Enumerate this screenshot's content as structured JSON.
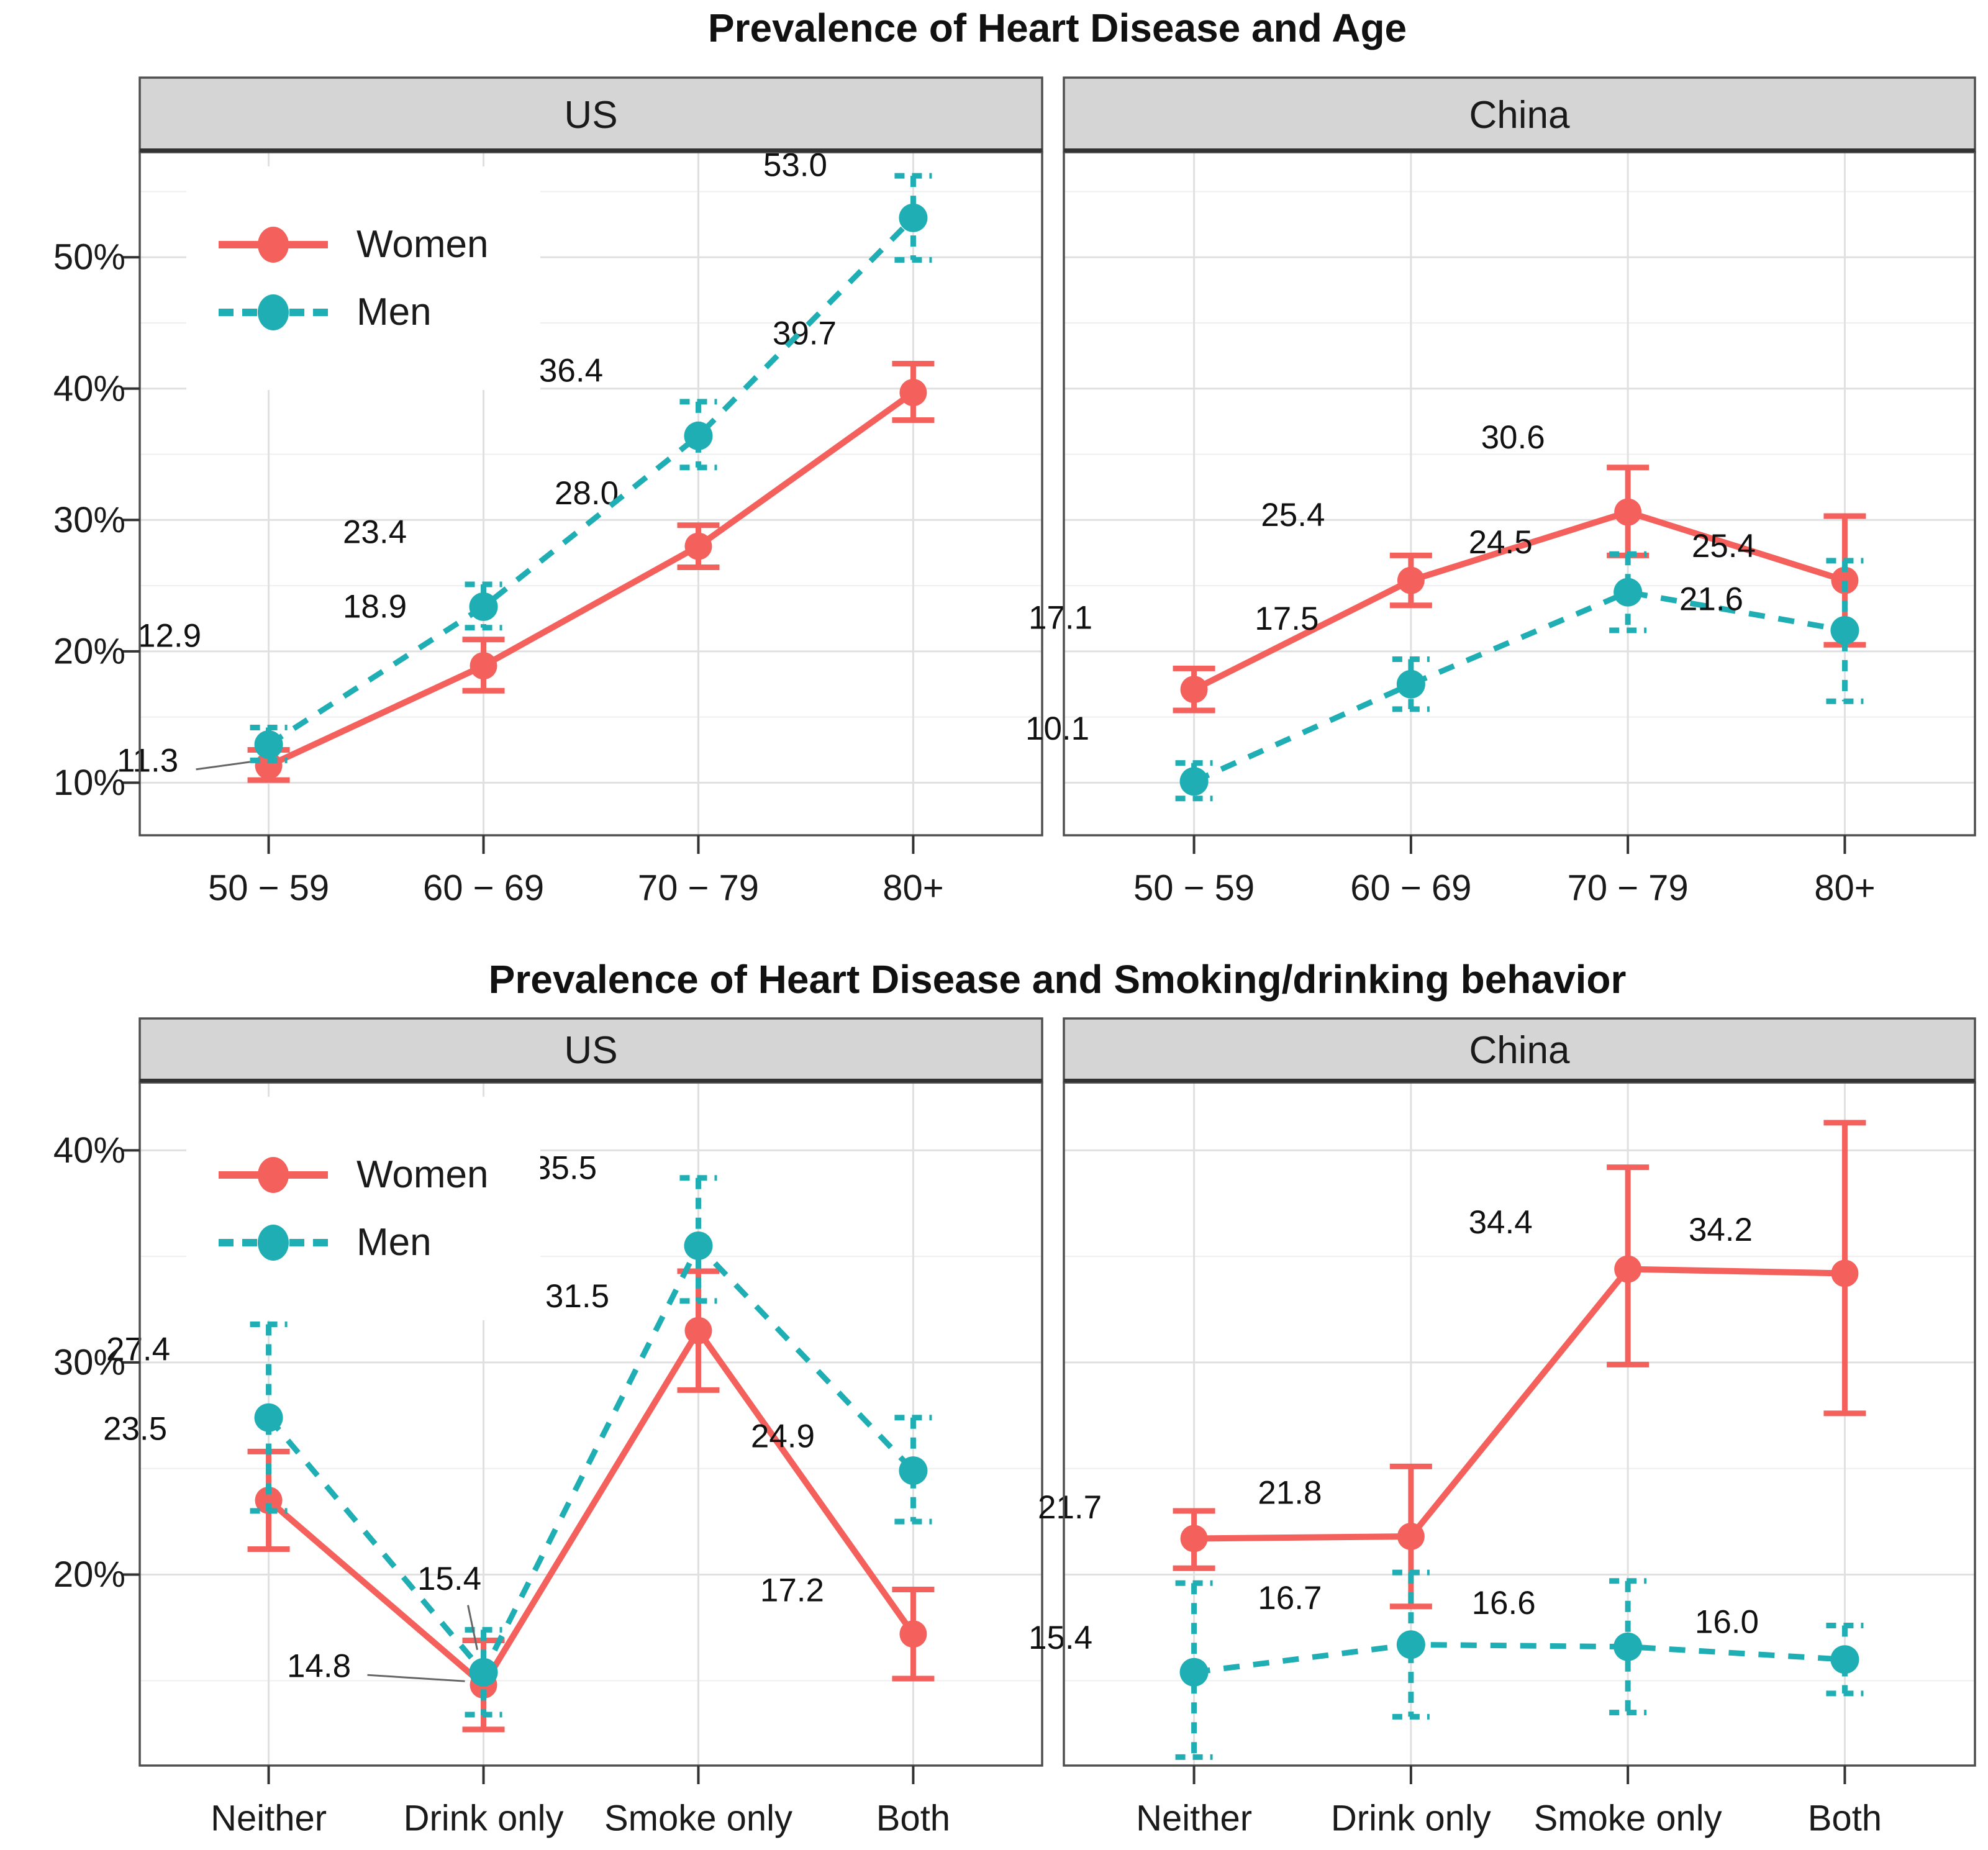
{
  "colors": {
    "women": "#F4605C",
    "men": "#1FAEB3",
    "strip_bg": "#D5D5D5",
    "panel_border": "#4F4F4F",
    "grid_major": "#E0E0E0",
    "grid_minor": "#EFEFEF",
    "axis_text": "#1A1A1A",
    "tick": "#333333",
    "leader": "#666666",
    "background": "#FFFFFF"
  },
  "legend": {
    "women_label": "Women",
    "men_label": "Men"
  },
  "chart_data": [
    {
      "type": "line",
      "title": "Prevalence of Heart Disease and Age",
      "xlabel": "",
      "ylabel": "",
      "x_categories": [
        "50 − 59",
        "60 − 69",
        "70 − 79",
        "80+"
      ],
      "y_domain": [
        6,
        58
      ],
      "y_ticks": [
        {
          "value": 10,
          "label": "10%"
        },
        {
          "value": 20,
          "label": "20%"
        },
        {
          "value": 30,
          "label": "30%"
        },
        {
          "value": 40,
          "label": "40%"
        },
        {
          "value": 50,
          "label": "50%"
        }
      ],
      "y_minor": [
        15,
        25,
        35,
        45,
        55
      ],
      "legend_position": "inside-top-left-US",
      "grid": true,
      "facets": [
        {
          "label": "US",
          "series": [
            {
              "name": "Women",
              "values": [
                11.3,
                18.9,
                28.0,
                39.7
              ],
              "err_low": [
                10.2,
                17.0,
                26.4,
                37.6
              ],
              "err_high": [
                12.5,
                20.9,
                29.6,
                41.9
              ],
              "labels": [
                {
                  "text": "11.3",
                  "dx": -195,
                  "dy": -8,
                  "leader": true
                },
                {
                  "text": "18.9",
                  "dx": -175,
                  "dy": -95
                },
                {
                  "text": "28.0",
                  "dx": -180,
                  "dy": -85
                },
                {
                  "text": "39.7",
                  "dx": -175,
                  "dy": -95
                }
              ]
            },
            {
              "name": "Men",
              "values": [
                12.9,
                23.4,
                36.4,
                53.0
              ],
              "err_low": [
                11.7,
                21.8,
                34.0,
                49.8
              ],
              "err_high": [
                14.2,
                25.1,
                39.0,
                56.2
              ],
              "labels": [
                {
                  "text": "12.9",
                  "dx": -160,
                  "dy": -175
                },
                {
                  "text": "23.4",
                  "dx": -175,
                  "dy": -120
                },
                {
                  "text": "36.4",
                  "dx": -205,
                  "dy": -105
                },
                {
                  "text": "53.0",
                  "dx": -190,
                  "dy": -85
                }
              ]
            }
          ]
        },
        {
          "label": "China",
          "series": [
            {
              "name": "Women",
              "values": [
                17.1,
                25.4,
                30.6,
                25.4
              ],
              "err_low": [
                15.5,
                23.5,
                27.3,
                20.5
              ],
              "err_high": [
                18.7,
                27.3,
                34.0,
                30.3
              ],
              "labels": [
                {
                  "text": "17.1",
                  "dx": -215,
                  "dy": -115
                },
                {
                  "text": "25.4",
                  "dx": -190,
                  "dy": -105
                },
                {
                  "text": "30.6",
                  "dx": -185,
                  "dy": -120
                },
                {
                  "text": "25.4",
                  "dx": -195,
                  "dy": -55
                }
              ]
            },
            {
              "name": "Men",
              "values": [
                10.1,
                17.5,
                24.5,
                21.6
              ],
              "err_low": [
                8.8,
                15.6,
                21.6,
                16.2
              ],
              "err_high": [
                11.5,
                19.4,
                27.4,
                26.9
              ],
              "labels": [
                {
                  "text": "10.1",
                  "dx": -220,
                  "dy": -85
                },
                {
                  "text": "17.5",
                  "dx": -200,
                  "dy": -105
                },
                {
                  "text": "24.5",
                  "dx": -205,
                  "dy": -80
                },
                {
                  "text": "21.6",
                  "dx": -215,
                  "dy": -50
                }
              ]
            }
          ]
        }
      ]
    },
    {
      "type": "line",
      "title": "Prevalence of Heart Disease and Smoking/drinking behavior",
      "xlabel": "",
      "ylabel": "",
      "x_categories": [
        "Neither",
        "Drink only",
        "Smoke only",
        "Both"
      ],
      "y_domain": [
        11,
        43.2
      ],
      "y_ticks": [
        {
          "value": 20,
          "label": "20%"
        },
        {
          "value": 30,
          "label": "30%"
        },
        {
          "value": 40,
          "label": "40%"
        }
      ],
      "y_minor": [
        15,
        25,
        35
      ],
      "legend_position": "inside-top-left-US",
      "grid": true,
      "facets": [
        {
          "label": "US",
          "series": [
            {
              "name": "Women",
              "values": [
                23.5,
                14.8,
                31.5,
                17.2
              ],
              "err_low": [
                21.2,
                12.7,
                28.7,
                15.1
              ],
              "err_high": [
                25.8,
                16.9,
                34.3,
                19.3
              ],
              "labels": [
                {
                  "text": "23.5",
                  "dx": -215,
                  "dy": -115
                },
                {
                  "text": "14.8",
                  "dx": -265,
                  "dy": -30,
                  "leader": true
                },
                {
                  "text": "31.5",
                  "dx": -195,
                  "dy": -55
                },
                {
                  "text": "17.2",
                  "dx": -195,
                  "dy": -70
                }
              ]
            },
            {
              "name": "Men",
              "values": [
                27.4,
                15.4,
                35.5,
                24.9
              ],
              "err_low": [
                23.0,
                13.4,
                32.9,
                22.5
              ],
              "err_high": [
                31.8,
                17.4,
                38.7,
                27.4
              ],
              "labels": [
                {
                  "text": "27.4",
                  "dx": -210,
                  "dy": -110
                },
                {
                  "text": "15.4",
                  "dx": -55,
                  "dy": -150,
                  "leader": true
                },
                {
                  "text": "35.5",
                  "dx": -215,
                  "dy": -125
                },
                {
                  "text": "24.9",
                  "dx": -210,
                  "dy": -55
                }
              ]
            }
          ]
        },
        {
          "label": "China",
          "series": [
            {
              "name": "Women",
              "values": [
                21.7,
                21.8,
                34.4,
                34.2
              ],
              "err_low": [
                20.3,
                18.5,
                29.9,
                27.6
              ],
              "err_high": [
                23.0,
                25.1,
                39.2,
                41.3
              ],
              "labels": [
                {
                  "text": "21.7",
                  "dx": -200,
                  "dy": -50
                },
                {
                  "text": "21.8",
                  "dx": -195,
                  "dy": -70
                },
                {
                  "text": "34.4",
                  "dx": -205,
                  "dy": -75
                },
                {
                  "text": "34.2",
                  "dx": -200,
                  "dy": -70
                }
              ]
            },
            {
              "name": "Men",
              "values": [
                15.4,
                16.7,
                16.6,
                16.0
              ],
              "err_low": [
                11.4,
                13.3,
                13.5,
                14.4
              ],
              "err_high": [
                19.6,
                20.1,
                19.7,
                17.6
              ],
              "labels": [
                {
                  "text": "15.4",
                  "dx": -215,
                  "dy": -55
                },
                {
                  "text": "16.7",
                  "dx": -195,
                  "dy": -75
                },
                {
                  "text": "16.6",
                  "dx": -200,
                  "dy": -70
                },
                {
                  "text": "16.0",
                  "dx": -190,
                  "dy": -60
                }
              ]
            }
          ]
        }
      ]
    }
  ]
}
